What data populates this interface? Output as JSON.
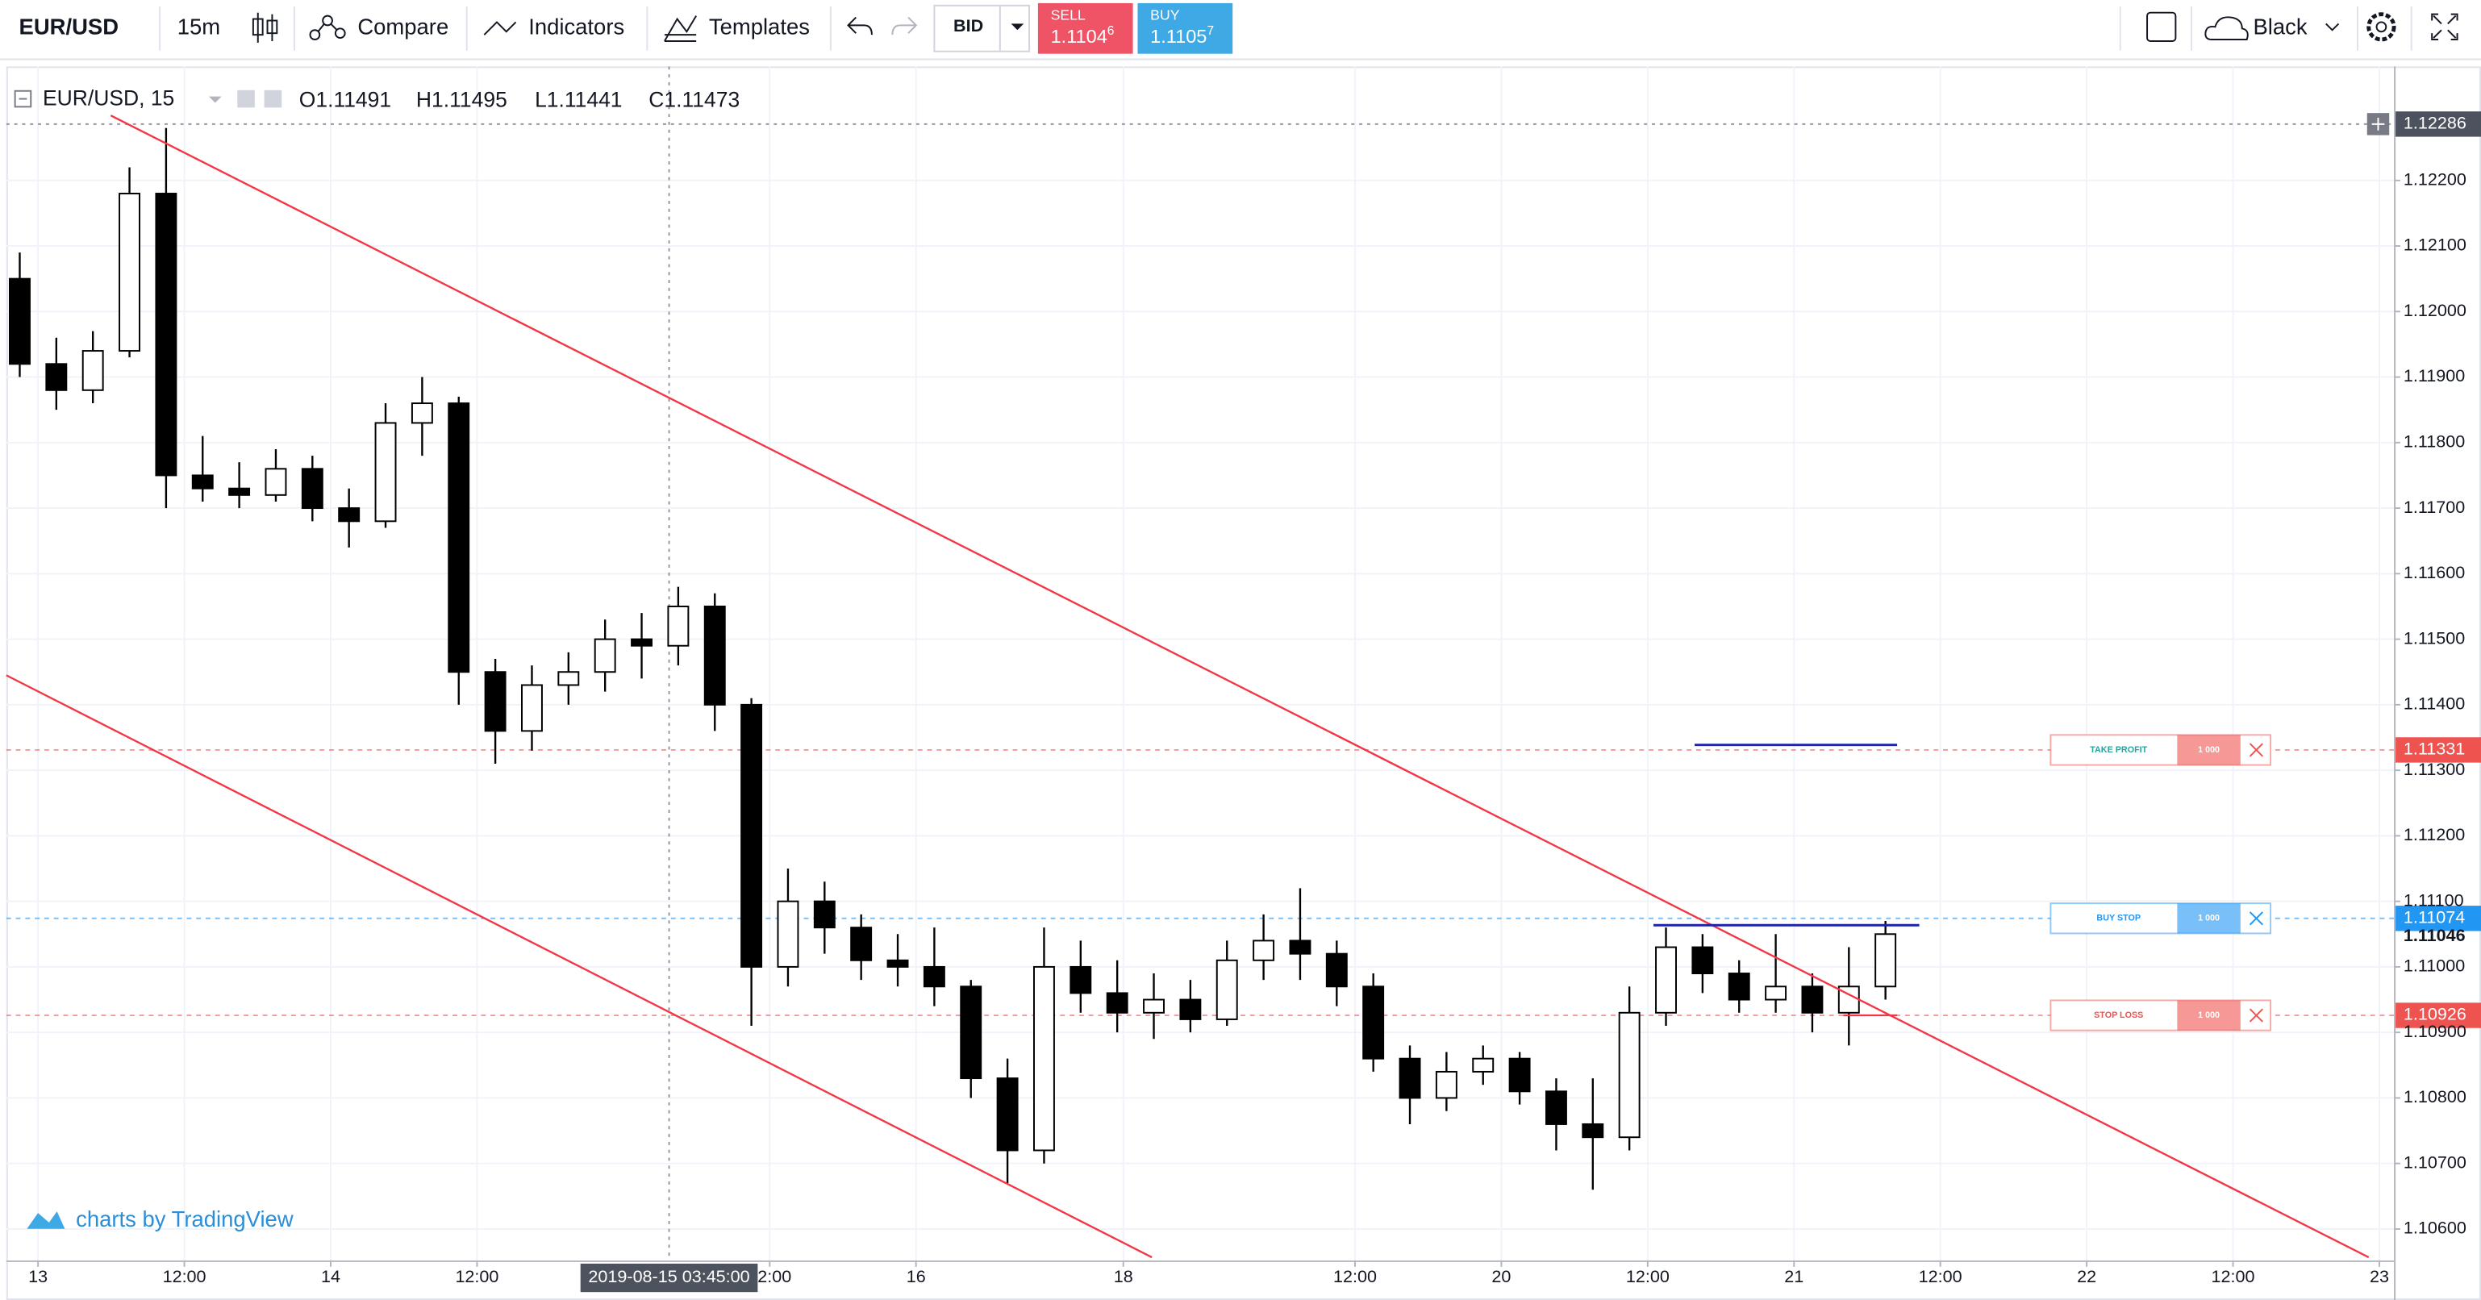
{
  "toolbar": {
    "symbol": "EUR/USD",
    "interval": "15m",
    "compare": "Compare",
    "indicators": "Indicators",
    "templates": "Templates",
    "price_source": "BID",
    "sell": {
      "label": "SELL",
      "price": "1.1104",
      "pip": "6"
    },
    "buy": {
      "label": "BUY",
      "price": "1.1105",
      "pip": "7"
    },
    "theme": "Black"
  },
  "legend": {
    "symbol": "EUR/USD, 15",
    "open_label": "O",
    "open": 1.11491,
    "high_label": "H",
    "high": 1.11495,
    "low_label": "L",
    "low": 1.11441,
    "close_label": "C",
    "close": 1.11473
  },
  "watermark": "charts by TradingView",
  "chart_data": {
    "type": "candlestick",
    "x": [
      -1.5,
      1.5,
      4.5,
      7.5,
      10.5,
      13.5,
      16.5,
      19.5,
      22.5,
      25.5,
      28.5,
      31.5,
      34.5,
      37.5,
      40.5,
      43.5,
      46.5,
      49.5,
      52.5,
      55.5,
      58.5,
      61.5,
      64.5,
      67.5,
      70.5,
      73.5,
      76.5,
      79.5,
      82.5,
      85.5,
      88.5,
      91.5,
      94.5,
      97.5,
      100.5,
      103.5,
      106.5,
      109.5,
      112.5,
      115.5,
      118.5,
      121.5,
      124.5,
      127.5,
      130.5,
      133.5,
      136.5,
      139.5,
      142.5,
      145.5,
      148.5,
      151.5
    ],
    "open": [
      1.1205,
      1.1192,
      1.1188,
      1.1194,
      1.1218,
      1.1175,
      1.1173,
      1.1172,
      1.1176,
      1.117,
      1.1168,
      1.1183,
      1.1186,
      1.1145,
      1.1136,
      1.1143,
      1.1145,
      1.115,
      1.1149,
      1.1155,
      1.114,
      1.11,
      1.111,
      1.1106,
      1.1101,
      1.11,
      1.1097,
      1.1083,
      1.1072,
      1.11,
      1.1096,
      1.1093,
      1.1095,
      1.1092,
      1.1101,
      1.1104,
      1.1102,
      1.1097,
      1.1086,
      1.108,
      1.1084,
      1.1086,
      1.1081,
      1.1076,
      1.1074,
      1.1093,
      1.1103,
      1.1099,
      1.1095,
      1.1097,
      1.1093,
      1.1097
    ],
    "high": [
      1.1209,
      1.1196,
      1.1197,
      1.1222,
      1.1228,
      1.1181,
      1.1177,
      1.1179,
      1.1178,
      1.1173,
      1.1186,
      1.119,
      1.1187,
      1.1147,
      1.1146,
      1.1148,
      1.1153,
      1.1154,
      1.1158,
      1.1157,
      1.1141,
      1.1115,
      1.1113,
      1.1108,
      1.1105,
      1.1106,
      1.1098,
      1.1086,
      1.1106,
      1.1104,
      1.1101,
      1.1099,
      1.1098,
      1.1104,
      1.1108,
      1.1112,
      1.1104,
      1.1099,
      1.1088,
      1.1087,
      1.1088,
      1.1087,
      1.1083,
      1.1083,
      1.1097,
      1.1106,
      1.1105,
      1.1101,
      1.1105,
      1.1099,
      1.1103,
      1.1107
    ],
    "low": [
      1.119,
      1.1185,
      1.1186,
      1.1193,
      1.117,
      1.1171,
      1.117,
      1.1171,
      1.1168,
      1.1164,
      1.1167,
      1.1178,
      1.114,
      1.1131,
      1.1133,
      1.114,
      1.1142,
      1.1144,
      1.1146,
      1.1136,
      1.1091,
      1.1097,
      1.1102,
      1.1098,
      1.1097,
      1.1094,
      1.108,
      1.1067,
      1.107,
      1.1093,
      1.109,
      1.1089,
      1.109,
      1.1091,
      1.1098,
      1.1098,
      1.1094,
      1.1084,
      1.1076,
      1.1078,
      1.1082,
      1.1079,
      1.1072,
      1.1066,
      1.1072,
      1.1091,
      1.1096,
      1.1093,
      1.1093,
      1.109,
      1.1088,
      1.1095
    ],
    "close": [
      1.1192,
      1.1188,
      1.1194,
      1.1218,
      1.1175,
      1.1173,
      1.1172,
      1.1176,
      1.117,
      1.1168,
      1.1183,
      1.1186,
      1.1145,
      1.1136,
      1.1143,
      1.1145,
      1.115,
      1.1149,
      1.1155,
      1.114,
      1.11,
      1.111,
      1.1106,
      1.1101,
      1.11,
      1.1097,
      1.1083,
      1.1072,
      1.11,
      1.1096,
      1.1093,
      1.1095,
      1.1092,
      1.1101,
      1.1104,
      1.1102,
      1.1097,
      1.1086,
      1.108,
      1.1084,
      1.1086,
      1.1081,
      1.1076,
      1.1074,
      1.1093,
      1.1103,
      1.1099,
      1.1095,
      1.1097,
      1.1093,
      1.1097,
      1.1105
    ],
    "up_color": "#ffffff",
    "down_color": "#000000",
    "wick_color": "#000000",
    "xlim": [
      -2.6,
      193.2
    ],
    "xticks": [
      {
        "value": 0,
        "label": "13"
      },
      {
        "value": 12,
        "label": "12:00"
      },
      {
        "value": 24,
        "label": "14"
      },
      {
        "value": 36,
        "label": "12:00"
      },
      {
        "value": 60,
        "label": "12:00"
      },
      {
        "value": 72,
        "label": "16"
      },
      {
        "value": 89,
        "label": "18"
      },
      {
        "value": 108,
        "label": "12:00"
      },
      {
        "value": 120,
        "label": "20"
      },
      {
        "value": 132,
        "label": "12:00"
      },
      {
        "value": 144,
        "label": "21"
      },
      {
        "value": 156,
        "label": "12:00"
      },
      {
        "value": 168,
        "label": "22"
      },
      {
        "value": 180,
        "label": "12:00"
      },
      {
        "value": 192,
        "label": "23"
      }
    ],
    "ylim": [
      1.10552,
      1.12374
    ],
    "yticks": [
      {
        "value": 1.122,
        "label": "1.12200"
      },
      {
        "value": 1.121,
        "label": "1.12100"
      },
      {
        "value": 1.12,
        "label": "1.12000"
      },
      {
        "value": 1.119,
        "label": "1.11900"
      },
      {
        "value": 1.118,
        "label": "1.11800"
      },
      {
        "value": 1.117,
        "label": "1.11700"
      },
      {
        "value": 1.116,
        "label": "1.11600"
      },
      {
        "value": 1.115,
        "label": "1.11500"
      },
      {
        "value": 1.114,
        "label": "1.11400"
      },
      {
        "value": 1.113,
        "label": "1.11300"
      },
      {
        "value": 1.112,
        "label": "1.11200"
      },
      {
        "value": 1.111,
        "label": "1.11100"
      },
      {
        "value": 1.11,
        "label": "1.11000"
      },
      {
        "value": 1.109,
        "label": "1.10900"
      },
      {
        "value": 1.108,
        "label": "1.10800"
      },
      {
        "value": 1.107,
        "label": "1.10700"
      },
      {
        "value": 1.106,
        "label": "1.10600"
      }
    ],
    "grid": true,
    "crosshair": {
      "x": 51.75,
      "x_label": "2019-08-15 03:45:00",
      "y": 1.12286
    },
    "last_price": 1.11046,
    "orders": [
      {
        "name": "TAKE PROFIT",
        "price": 1.11331,
        "quantity": "1 000",
        "color": "#ef5350",
        "text_color": "#26a69a"
      },
      {
        "name": "BUY STOP",
        "price": 1.11074,
        "quantity": "1 000",
        "color": "#2196f3",
        "text_color": "#2196f3"
      },
      {
        "name": "STOP LOSS",
        "price": 1.10926,
        "quantity": "1 000",
        "color": "#ef5350",
        "text_color": "#ef5350"
      }
    ]
  }
}
